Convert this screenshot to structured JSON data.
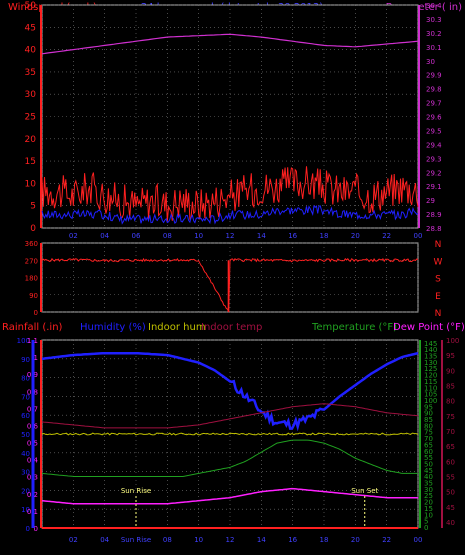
{
  "header": {
    "windspeed_label": "Windspeed (mph)",
    "title": "24 hours graph (date : July 30 2013)",
    "barometer_label": "Barometer ( in)"
  },
  "bottom_labels": {
    "rainfall": "Rainfall (.in)",
    "humidity": "Humidity (%)",
    "indoor_hum": "Indoor hum",
    "indoor_temp": "Indoor temp",
    "temperature": "Temperature (°F)",
    "dew_point": "Dew Point (°F)",
    "sunrise": "Sun Rise",
    "sunset": "Sun Set"
  },
  "colors": {
    "wind": "#ff2020",
    "gust_avg": "#2020ff",
    "barometer": "#d030d0",
    "direction": "#ff2020",
    "rain": "#ff2020",
    "humidity": "#2020ff",
    "indoor_hum": "#c0c000",
    "indoor_temp": "#a01040",
    "temperature": "#20a020",
    "dew_point": "#ff20ff",
    "sun": "#ffff80",
    "axis_time": "#4040ff"
  },
  "chart_data": [
    {
      "type": "line",
      "title": "24 hours graph (date : July 30 2013)",
      "x_ticks": [
        "00",
        "02",
        "04",
        "06",
        "08",
        "10",
        "12",
        "14",
        "16",
        "18",
        "20",
        "22",
        "00"
      ],
      "y_left": {
        "label": "Windspeed (mph)",
        "ticks": [
          0,
          5,
          10,
          15,
          20,
          25,
          30,
          35,
          40,
          45,
          50
        ],
        "range": [
          0,
          50
        ]
      },
      "y_right": {
        "label": "Barometer ( in)",
        "ticks": [
          28.8,
          28.9,
          29.0,
          29.1,
          29.2,
          29.3,
          29.4,
          29.5,
          29.6,
          29.7,
          29.8,
          29.9,
          30.0,
          30.1,
          30.2,
          30.3,
          30.4
        ],
        "tick_labels": [
          "28.8",
          "28.9",
          "29",
          "29.1",
          "29.2",
          "29.3",
          "29.4",
          "29.5",
          "29.6",
          "29.7",
          "29.8",
          "29.9",
          "30",
          "30.1",
          "30.2",
          "30.3",
          "30.4"
        ],
        "range": [
          28.8,
          30.4
        ]
      },
      "series": [
        {
          "key": "wind_gust",
          "x": [
            0,
            1,
            2,
            3,
            4,
            5,
            6,
            7,
            8,
            9,
            10,
            11,
            12,
            13,
            14,
            15,
            16,
            17,
            18,
            19,
            20,
            21,
            22,
            23,
            24
          ],
          "values": [
            7,
            7,
            6,
            8,
            6,
            5,
            4,
            5,
            4,
            5,
            4,
            5,
            6,
            7,
            8,
            8,
            9,
            9,
            8,
            7,
            7,
            6,
            7,
            8,
            7
          ]
        },
        {
          "key": "wind_avg",
          "x": [
            0,
            1,
            2,
            3,
            4,
            5,
            6,
            7,
            8,
            9,
            10,
            11,
            12,
            13,
            14,
            15,
            16,
            17,
            18,
            19,
            20,
            21,
            22,
            23,
            24
          ],
          "values": [
            3,
            3,
            3,
            3,
            3,
            2,
            2,
            2,
            2,
            2,
            2,
            2,
            3,
            3,
            3,
            4,
            4,
            4,
            4,
            3,
            3,
            3,
            3,
            3,
            4
          ]
        },
        {
          "key": "barometer",
          "x": [
            0,
            2,
            4,
            6,
            8,
            10,
            12,
            14,
            16,
            18,
            20,
            22,
            24
          ],
          "values": [
            30.05,
            30.08,
            30.11,
            30.14,
            30.17,
            30.18,
            30.19,
            30.17,
            30.14,
            30.11,
            30.1,
            30.12,
            30.14
          ]
        }
      ]
    },
    {
      "type": "line",
      "title": "Wind direction",
      "y_left": {
        "ticks": [
          0,
          90,
          180,
          270,
          360
        ],
        "range": [
          0,
          360
        ]
      },
      "y_right_labels": [
        "N",
        "W",
        "S",
        "E",
        "N"
      ],
      "x_ticks": [],
      "series": [
        {
          "key": "direction",
          "x": [
            0,
            2,
            4,
            6,
            8,
            10,
            11.9,
            12,
            14,
            16,
            18,
            20,
            22,
            24
          ],
          "values": [
            270,
            272,
            268,
            270,
            271,
            269,
            0,
            272,
            270,
            268,
            270,
            271,
            270,
            270
          ]
        }
      ]
    },
    {
      "type": "line",
      "title": "",
      "x_ticks": [
        "00",
        "02",
        "04",
        "06",
        "08",
        "10",
        "12",
        "14",
        "16",
        "18",
        "20",
        "22",
        "00"
      ],
      "x_tick_labels_display": [
        "00",
        "02",
        "04",
        "Sun Rise",
        "08",
        "10",
        "12",
        "14",
        "16",
        "18",
        "20",
        "22",
        "00"
      ],
      "y_rain": {
        "label": "Rainfall (.in)",
        "ticks": [
          0,
          0.1,
          0.2,
          0.3,
          0.4,
          0.5,
          0.6,
          0.7,
          0.8,
          0.9,
          1,
          1.1
        ],
        "tick_labels": [
          "0",
          "0.1",
          "0.2",
          "0.3",
          "0.4",
          "0.5",
          "0.6",
          "0.7",
          "0.8",
          "0.9",
          "1",
          "1.1"
        ],
        "range": [
          0,
          1.1
        ]
      },
      "y_humidity": {
        "label": "Humidity (%)",
        "ticks": [
          0,
          10,
          20,
          30,
          40,
          50,
          60,
          70,
          80,
          90,
          100
        ],
        "range": [
          0,
          100
        ]
      },
      "y_temp_inner": {
        "ticks": [
          0,
          5,
          10,
          15,
          20,
          25,
          30,
          35,
          40,
          45,
          50,
          55,
          60,
          65,
          70,
          75,
          80,
          85,
          90,
          95,
          100,
          105,
          110,
          115,
          120,
          125,
          130,
          135,
          140,
          145
        ],
        "range": [
          0,
          148
        ]
      },
      "y_temp_outer": {
        "label": "Temperature (°F)",
        "ticks": [
          40,
          45,
          50,
          55,
          60,
          65,
          70,
          75,
          80,
          85,
          90,
          95,
          100
        ],
        "range": [
          38,
          100
        ]
      },
      "series": [
        {
          "key": "humidity",
          "x": [
            0,
            2,
            4,
            6,
            8,
            9,
            10,
            11,
            12,
            13,
            14,
            15,
            16,
            17,
            18,
            19,
            20,
            21,
            22,
            23,
            24
          ],
          "values": [
            90,
            92,
            93,
            93,
            92,
            90,
            88,
            84,
            78,
            70,
            62,
            56,
            55,
            58,
            63,
            70,
            76,
            82,
            87,
            91,
            93
          ]
        },
        {
          "key": "indoor_temp",
          "x": [
            0,
            2,
            4,
            6,
            8,
            10,
            12,
            14,
            16,
            18,
            20,
            22,
            24
          ],
          "values": [
            73,
            72,
            71,
            71,
            71,
            72,
            74,
            76,
            78,
            79,
            78,
            76,
            75
          ]
        },
        {
          "key": "indoor_hum",
          "x": [
            0,
            2,
            4,
            6,
            8,
            10,
            12,
            14,
            16,
            18,
            20,
            22,
            24
          ],
          "values": [
            50,
            50,
            50,
            50,
            50,
            50,
            50,
            50,
            50,
            50,
            50,
            50,
            50
          ]
        },
        {
          "key": "temperature",
          "x": [
            0,
            2,
            4,
            6,
            8,
            9,
            10,
            11,
            12,
            13,
            14,
            15,
            16,
            17,
            18,
            19,
            20,
            21,
            22,
            23,
            24
          ],
          "values": [
            56,
            55,
            55,
            55,
            55,
            55,
            56,
            57,
            58,
            60,
            63,
            66,
            67,
            67,
            66,
            64,
            61,
            59,
            57,
            56,
            56
          ]
        },
        {
          "key": "dew_point",
          "x": [
            0,
            2,
            4,
            6,
            8,
            10,
            12,
            14,
            16,
            18,
            20,
            22,
            24
          ],
          "values": [
            47,
            46,
            46,
            46,
            46,
            47,
            48,
            50,
            51,
            50,
            49,
            48,
            48
          ]
        },
        {
          "key": "rain",
          "x": [
            0,
            24
          ],
          "values": [
            0,
            0
          ]
        }
      ],
      "annotations": [
        {
          "text": "Sun Rise",
          "x": 6.0
        },
        {
          "text": "Sun Set",
          "x": 20.6
        }
      ]
    }
  ]
}
